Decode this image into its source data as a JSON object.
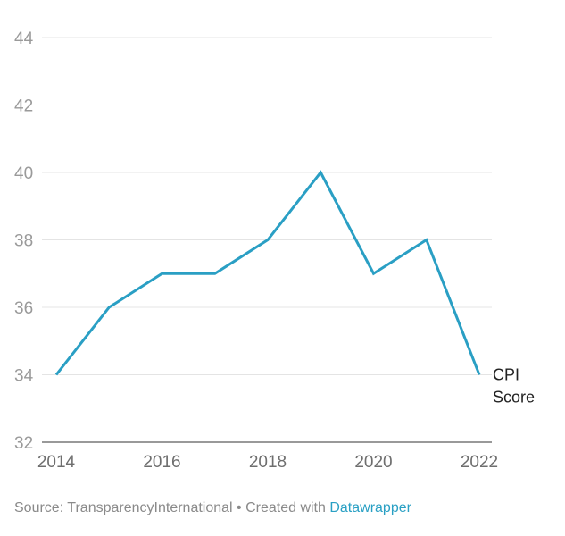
{
  "chart_data": {
    "type": "line",
    "title": "",
    "xlabel": "",
    "ylabel": "",
    "x": [
      2014,
      2015,
      2016,
      2017,
      2018,
      2019,
      2020,
      2021,
      2022
    ],
    "series": [
      {
        "name": "CPI Score",
        "name_lines": [
          "CPI",
          "Score"
        ],
        "values": [
          34,
          36,
          37,
          37,
          38,
          40,
          37,
          38,
          34
        ],
        "color": "#2a9fc4"
      }
    ],
    "ylim": [
      32,
      44
    ],
    "yticks": [
      "32",
      "34",
      "36",
      "38",
      "40",
      "42",
      "44"
    ],
    "xticks": [
      "2014",
      "2016",
      "2018",
      "2020",
      "2022"
    ],
    "grid": true,
    "legend": "direct-label-right"
  },
  "footer": {
    "source_text": "Source: TransparencyInternational • Created with ",
    "link_text": "Datawrapper",
    "link_color": "#2aa0c4"
  }
}
